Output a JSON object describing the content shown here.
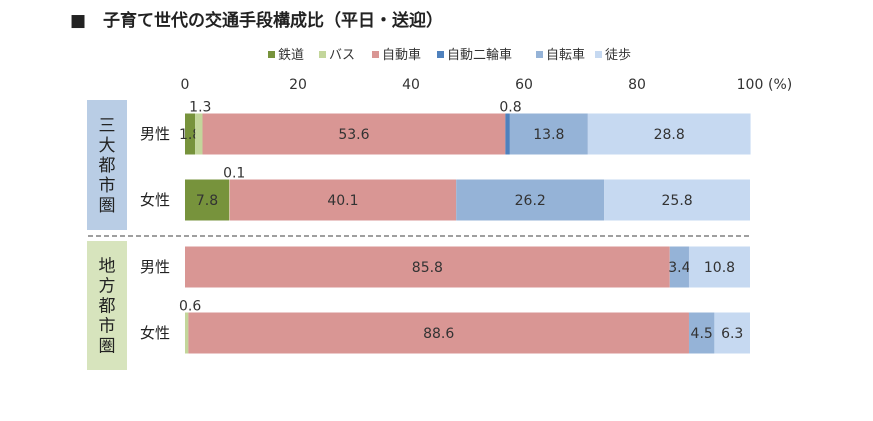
{
  "title": "■　子育て世代の交通手段構成比（平日・送迎）",
  "chart_data": {
    "type": "bar",
    "stacked": true,
    "orientation": "horizontal",
    "title": "子育て世代の交通手段構成比（平日・送迎）",
    "xlim": [
      0,
      100
    ],
    "xticks": [
      "0",
      "20",
      "40",
      "60",
      "80",
      "100"
    ],
    "xunit": "(%)",
    "legend_position": "top",
    "grid": false,
    "legend": [
      "鉄道",
      "バス",
      "自動車",
      "自動二輪車",
      "自転車",
      "徒歩"
    ],
    "colors": [
      "#77933c",
      "#c3d69b",
      "#d99694",
      "#4f81bd",
      "#95b3d7",
      "#c6d9f1"
    ],
    "groups": [
      {
        "label": "三大都市圏",
        "color": "#b9cde5",
        "rows": [
          {
            "label": "男性",
            "values": [
              1.8,
              1.3,
              53.6,
              0.8,
              13.8,
              28.8
            ],
            "labels": [
              "1.8",
              "1.3",
              "53.6",
              "0.8",
              "13.8",
              "28.8"
            ]
          },
          {
            "label": "女性",
            "values": [
              7.8,
              0.1,
              40.1,
              0,
              26.2,
              25.8
            ],
            "labels": [
              "7.8",
              "0.1",
              "40.1",
              "",
              "26.2",
              "25.8"
            ]
          }
        ]
      },
      {
        "label": "地方都市圏",
        "color": "#d7e4bd",
        "rows": [
          {
            "label": "男性",
            "values": [
              0,
              0,
              85.8,
              0,
              3.4,
              10.8
            ],
            "labels": [
              "",
              "",
              "85.8",
              "",
              "3.4",
              "10.8"
            ]
          },
          {
            "label": "女性",
            "values": [
              0,
              0.6,
              88.6,
              0,
              4.5,
              6.3
            ],
            "labels": [
              "",
              "0.6",
              "88.6",
              "",
              "4.5",
              "6.3"
            ]
          }
        ]
      }
    ]
  }
}
